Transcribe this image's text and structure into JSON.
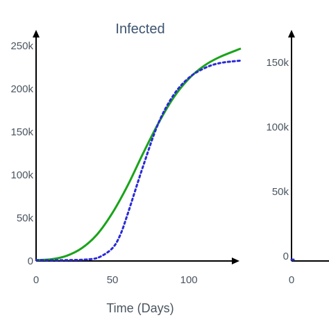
{
  "chart_data": [
    {
      "type": "line",
      "title": "Infected",
      "xlabel": "Time (Days)",
      "ylabel": "",
      "xlim": [
        0,
        134
      ],
      "ylim": [
        0,
        255000
      ],
      "x_ticks": [
        {
          "value": 0,
          "label": "0"
        },
        {
          "value": 50,
          "label": "50"
        },
        {
          "value": 100,
          "label": "100"
        }
      ],
      "y_ticks": [
        {
          "value": 0,
          "label": "0"
        },
        {
          "value": 50000,
          "label": "50k"
        },
        {
          "value": 100000,
          "label": "100k"
        },
        {
          "value": 150000,
          "label": "150k"
        },
        {
          "value": 200000,
          "label": "200k"
        },
        {
          "value": 250000,
          "label": "250k"
        }
      ],
      "colors": {
        "solid": "#1aa31a",
        "dotted": "#2a2ad6"
      },
      "series": [
        {
          "style": "solid",
          "x": [
            0,
            10,
            20,
            30,
            40,
            50,
            60,
            70,
            80,
            90,
            100,
            110,
            120,
            134
          ],
          "values": [
            1000,
            2000,
            6000,
            15000,
            31000,
            56000,
            88000,
            125000,
            160000,
            190000,
            212000,
            227000,
            237000,
            247000
          ]
        },
        {
          "style": "dotted",
          "x": [
            0,
            20,
            35,
            42,
            50,
            55,
            60,
            70,
            80,
            90,
            100,
            110,
            120,
            134
          ],
          "values": [
            1000,
            1000,
            2000,
            5000,
            15000,
            30000,
            55000,
            110000,
            160000,
            193000,
            213000,
            224000,
            230000,
            233000
          ]
        }
      ]
    },
    {
      "type": "line",
      "title": "",
      "xlabel": "",
      "ylabel": "",
      "xlim": [
        0,
        134
      ],
      "ylim": [
        0,
        170000
      ],
      "x_ticks": [
        {
          "value": 0,
          "label": "0"
        }
      ],
      "y_ticks": [
        {
          "value": 0,
          "label": "0"
        },
        {
          "value": 50000,
          "label": "50k"
        },
        {
          "value": 100000,
          "label": "100k"
        },
        {
          "value": 150000,
          "label": "150k"
        }
      ],
      "colors": {
        "solid": "#1aa31a",
        "dotted": "#2a2ad6"
      },
      "series": [
        {
          "style": "solid",
          "x": [
            0,
            10
          ],
          "values": [
            1000,
            1000
          ]
        },
        {
          "style": "dotted",
          "x": [
            0,
            10
          ],
          "values": [
            1000,
            1000
          ]
        }
      ]
    }
  ]
}
